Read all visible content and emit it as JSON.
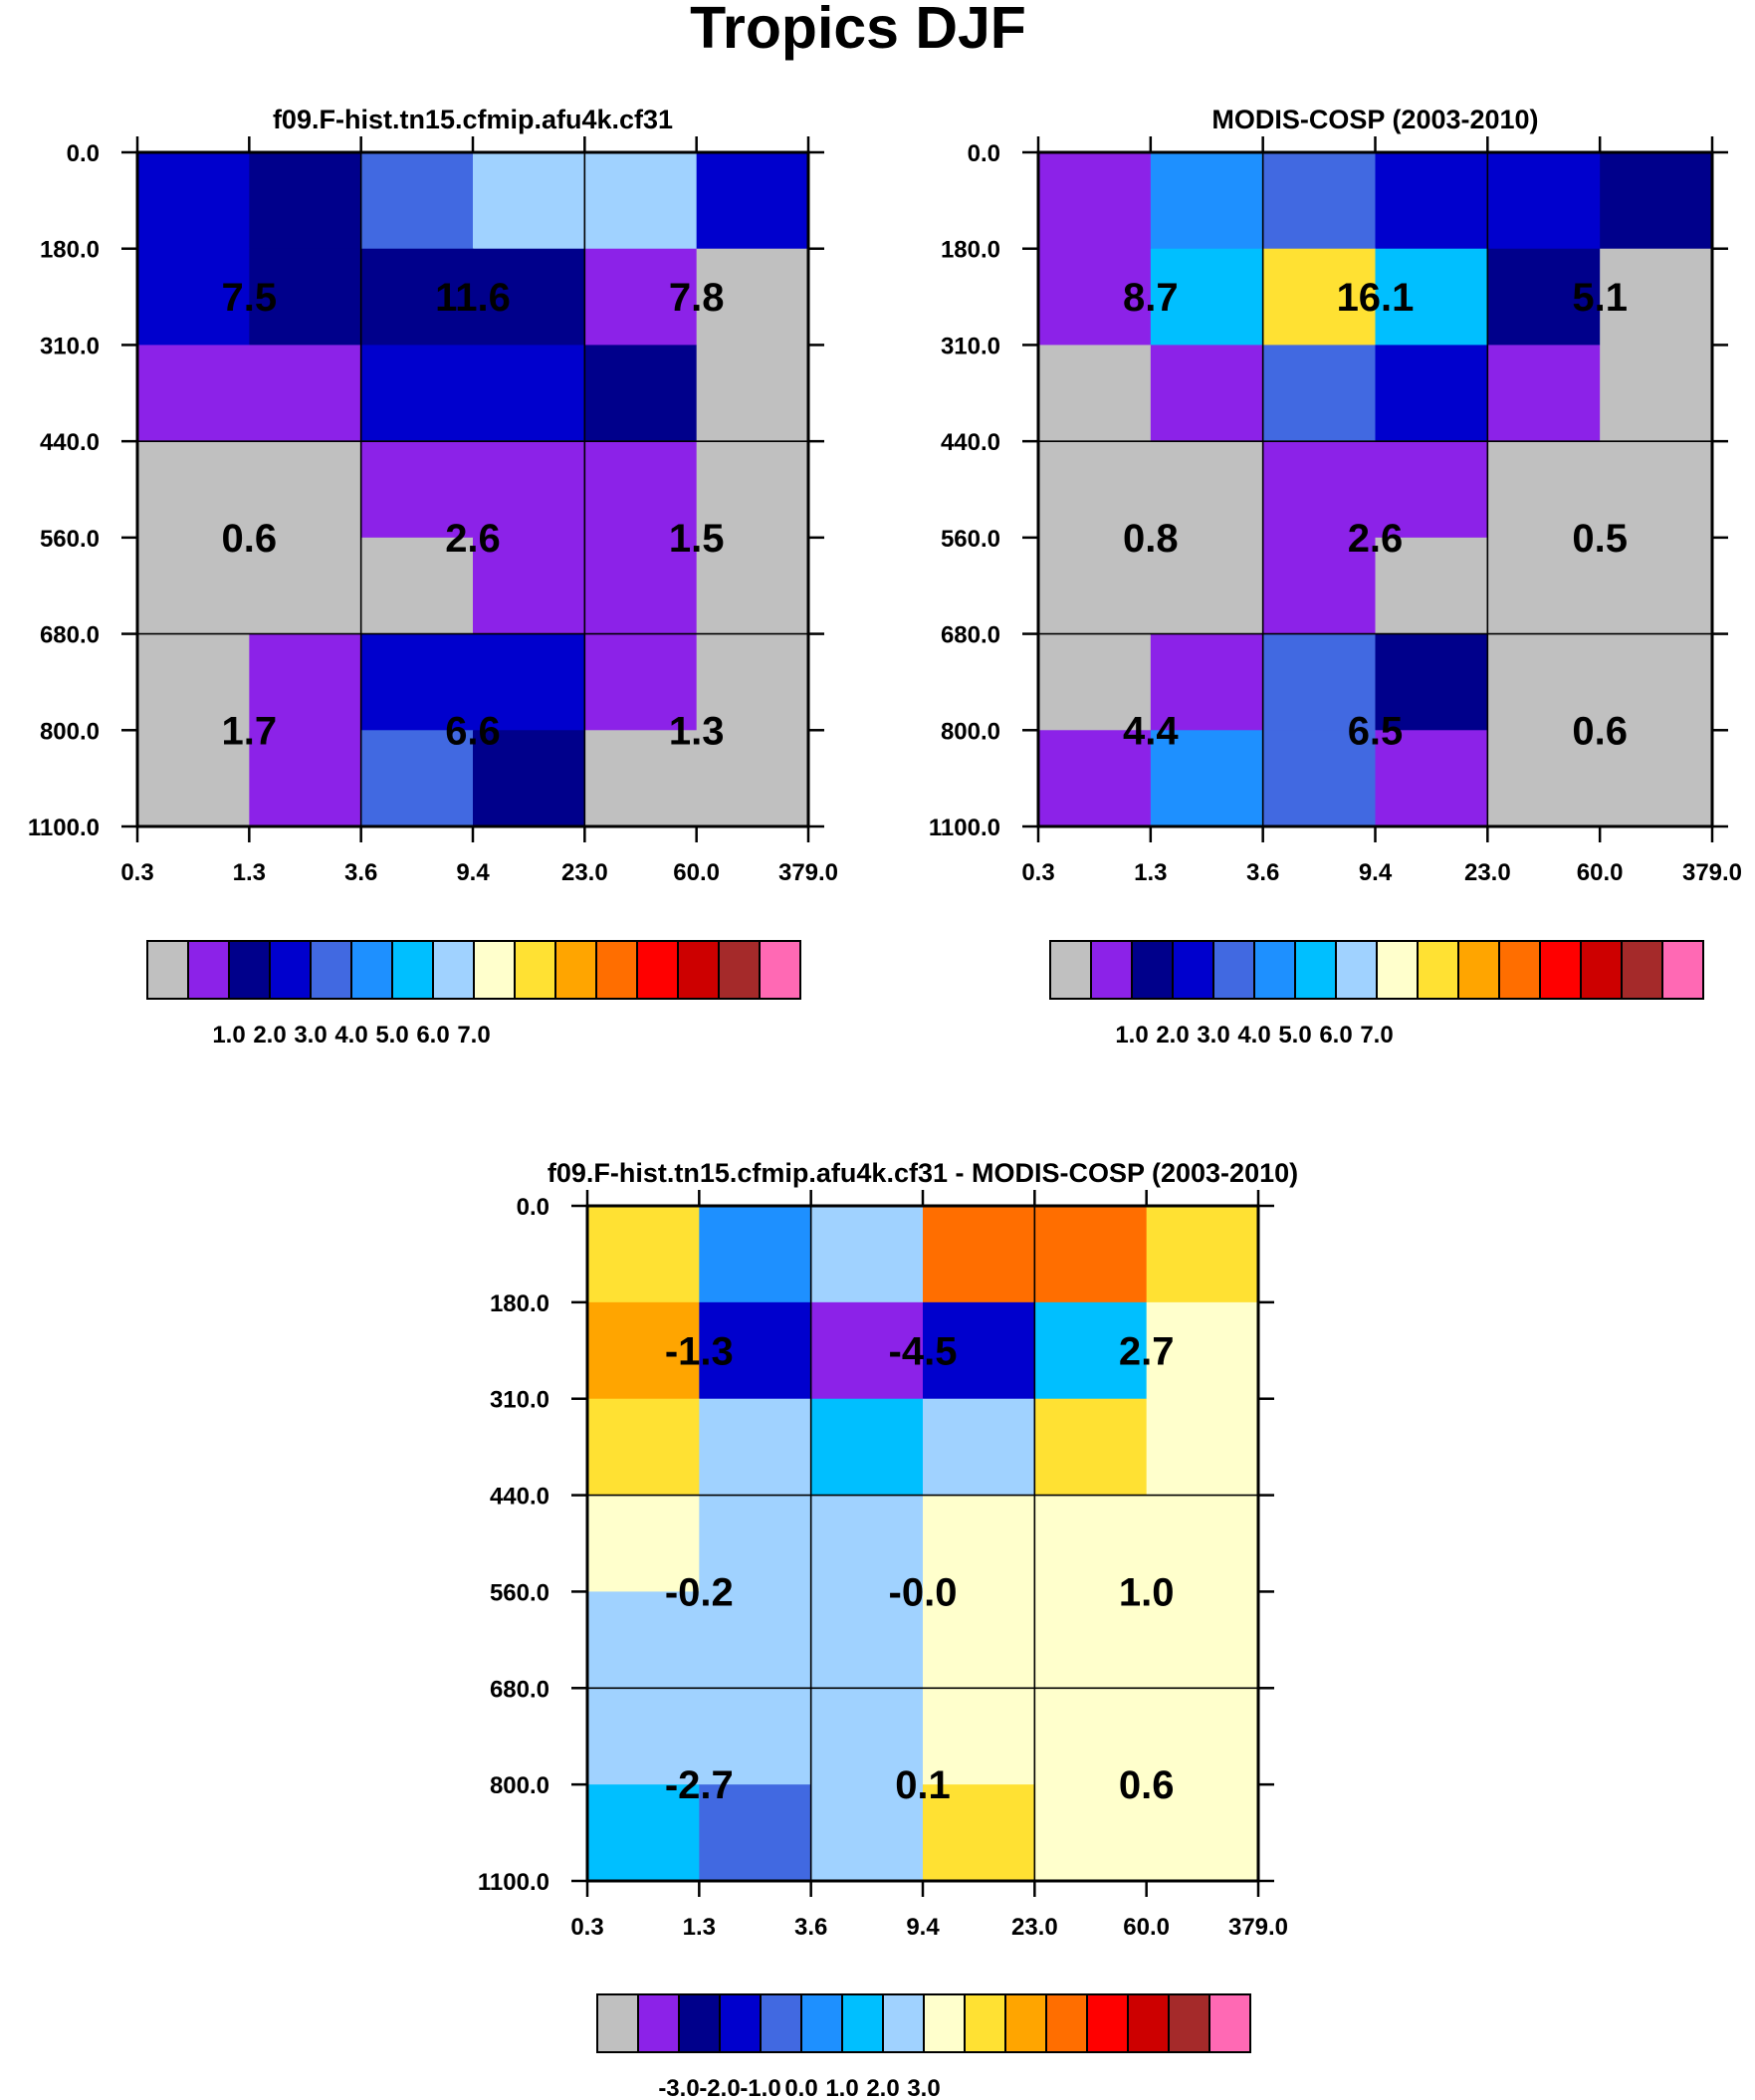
{
  "title": "Tropics DJF",
  "colors": {
    "palette": [
      "#c0c0c0",
      "#8c22e8",
      "#00008b",
      "#0000cd",
      "#4169e1",
      "#1e90ff",
      "#00bfff",
      "#a0d2ff",
      "#ffffcc",
      "#ffe133",
      "#ffa500",
      "#ff6e00",
      "#ff0000",
      "#cd0000",
      "#a52a2a",
      "#ff69b4"
    ]
  },
  "chart_data": [
    {
      "type": "heatmap",
      "title": "f09.F-hist.tn15.cfmip.afu4k.cf31",
      "x_ticks": [
        "0.3",
        "1.3",
        "3.6",
        "9.4",
        "23.0",
        "60.0",
        "379.0"
      ],
      "y_ticks": [
        "0.0",
        "180.0",
        "310.0",
        "440.0",
        "560.0",
        "680.0",
        "800.0",
        "1100.0"
      ],
      "cells": [
        [
          3,
          2,
          4,
          7,
          7,
          3
        ],
        [
          3,
          2,
          2,
          2,
          1,
          0
        ],
        [
          1,
          1,
          3,
          3,
          2,
          0
        ],
        [
          0,
          0,
          1,
          1,
          1,
          0
        ],
        [
          0,
          0,
          0,
          1,
          1,
          0
        ],
        [
          0,
          1,
          3,
          3,
          1,
          0
        ],
        [
          0,
          1,
          4,
          2,
          0,
          0
        ]
      ],
      "block_labels": [
        [
          "7.5",
          "11.6",
          "7.8"
        ],
        [
          "0.6",
          "2.6",
          "1.5"
        ],
        [
          "1.7",
          "6.6",
          "1.3"
        ]
      ],
      "colorbar": {
        "labels": [
          "1.0",
          "2.0",
          "3.0",
          "4.0",
          "5.0",
          "6.0",
          "7.0"
        ]
      }
    },
    {
      "type": "heatmap",
      "title": "MODIS-COSP (2003-2010)",
      "x_ticks": [
        "0.3",
        "1.3",
        "3.6",
        "9.4",
        "23.0",
        "60.0",
        "379.0"
      ],
      "y_ticks": [
        "0.0",
        "180.0",
        "310.0",
        "440.0",
        "560.0",
        "680.0",
        "800.0",
        "1100.0"
      ],
      "cells": [
        [
          1,
          5,
          4,
          3,
          3,
          2
        ],
        [
          1,
          6,
          9,
          6,
          2,
          0
        ],
        [
          0,
          1,
          4,
          3,
          1,
          0
        ],
        [
          0,
          0,
          1,
          1,
          0,
          0
        ],
        [
          0,
          0,
          1,
          0,
          0,
          0
        ],
        [
          0,
          1,
          4,
          2,
          0,
          0
        ],
        [
          1,
          5,
          4,
          1,
          0,
          0
        ]
      ],
      "block_labels": [
        [
          "8.7",
          "16.1",
          "5.1"
        ],
        [
          "0.8",
          "2.6",
          "0.5"
        ],
        [
          "4.4",
          "6.5",
          "0.6"
        ]
      ],
      "colorbar": {
        "labels": [
          "1.0",
          "2.0",
          "3.0",
          "4.0",
          "5.0",
          "6.0",
          "7.0"
        ]
      }
    },
    {
      "type": "heatmap",
      "title": "f09.F-hist.tn15.cfmip.afu4k.cf31 - MODIS-COSP (2003-2010)",
      "x_ticks": [
        "0.3",
        "1.3",
        "3.6",
        "9.4",
        "23.0",
        "60.0",
        "379.0"
      ],
      "y_ticks": [
        "0.0",
        "180.0",
        "310.0",
        "440.0",
        "560.0",
        "680.0",
        "800.0",
        "1100.0"
      ],
      "cells": [
        [
          9,
          5,
          7,
          11,
          11,
          9
        ],
        [
          10,
          3,
          1,
          3,
          6,
          8
        ],
        [
          9,
          7,
          6,
          7,
          9,
          8
        ],
        [
          8,
          7,
          7,
          8,
          8,
          8
        ],
        [
          7,
          7,
          7,
          8,
          8,
          8
        ],
        [
          7,
          7,
          7,
          8,
          8,
          8
        ],
        [
          6,
          4,
          7,
          9,
          8,
          8
        ]
      ],
      "block_labels": [
        [
          "-1.3",
          "-4.5",
          "2.7"
        ],
        [
          "-0.2",
          "-0.0",
          "1.0"
        ],
        [
          "-2.7",
          "0.1",
          "0.6"
        ]
      ],
      "colorbar": {
        "labels": [
          "-3.0",
          "-2.0",
          "-1.0",
          "0.0",
          "1.0",
          "2.0",
          "3.0"
        ]
      }
    }
  ]
}
